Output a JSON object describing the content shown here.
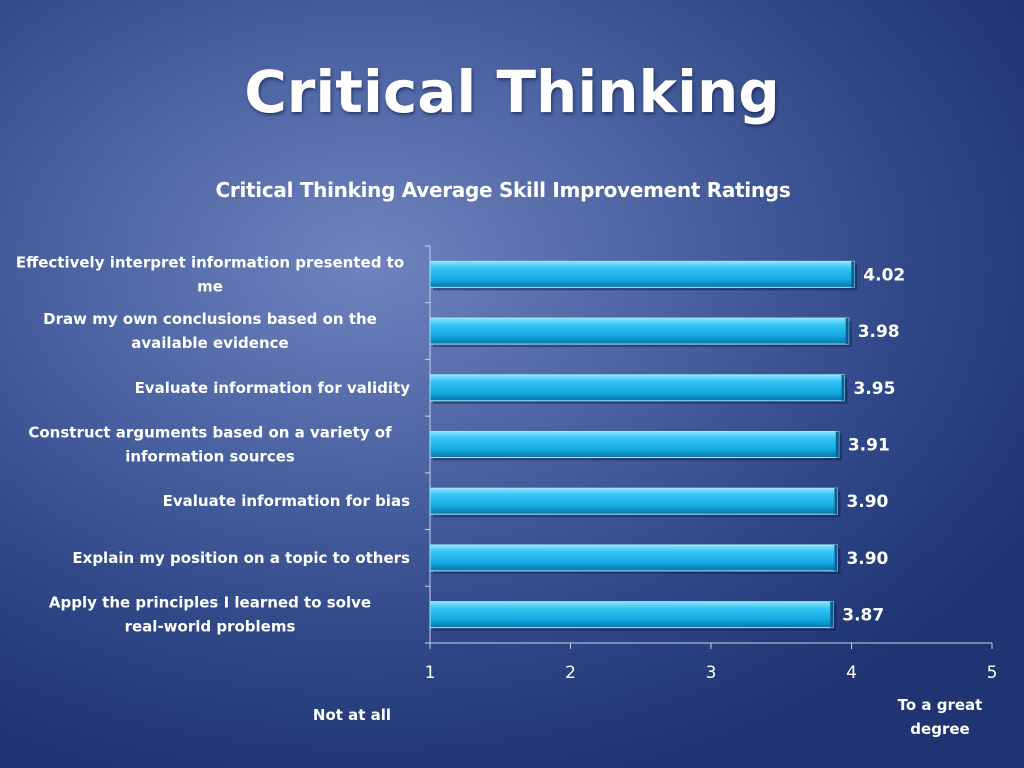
{
  "slide": {
    "title": "Critical Thinking"
  },
  "chart_data": {
    "type": "bar",
    "orientation": "horizontal",
    "title": "Critical Thinking Average Skill Improvement Ratings",
    "categories": [
      "Effectively interpret information presented to me",
      "Draw my own conclusions based on the available evidence",
      "Evaluate information for validity",
      "Construct arguments based on a variety of information sources",
      "Evaluate information for bias",
      "Explain my position on a topic to others",
      "Apply the principles I learned to solve real-world problems"
    ],
    "values": [
      4.02,
      3.98,
      3.95,
      3.91,
      3.9,
      3.9,
      3.87
    ],
    "value_labels": [
      "4.02",
      "3.98",
      "3.95",
      "3.91",
      "3.90",
      "3.90",
      "3.87"
    ],
    "xlim": [
      1,
      5
    ],
    "xticks": [
      "1",
      "2",
      "3",
      "4",
      "5"
    ],
    "scale_low_label": "Not at all",
    "scale_high_label": "To a great degree",
    "bar_color": "#1fb8ec",
    "grid": false
  }
}
